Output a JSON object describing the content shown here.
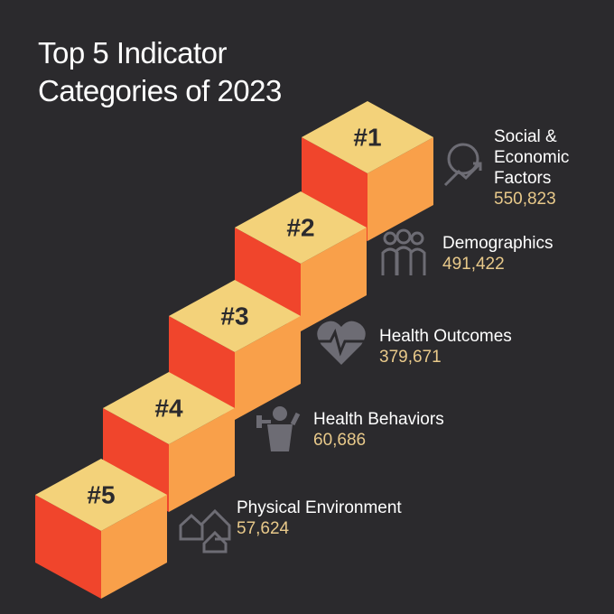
{
  "title": "Top 5 Indicator Categories of 2023",
  "items": [
    {
      "rank": "#1",
      "name": "Social & Economic Factors",
      "value": "550,823"
    },
    {
      "rank": "#2",
      "name": "Demographics",
      "value": "491,422"
    },
    {
      "rank": "#3",
      "name": "Health Outcomes",
      "value": "379,671"
    },
    {
      "rank": "#4",
      "name": "Health Behaviors",
      "value": "60,686"
    },
    {
      "rank": "#5",
      "name": "Physical Environment",
      "value": "57,624"
    }
  ]
}
